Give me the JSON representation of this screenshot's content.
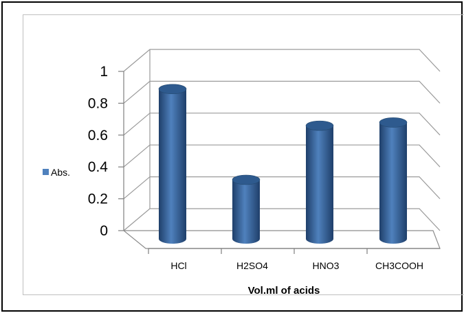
{
  "chart_data": {
    "type": "bar",
    "style": "3d-cylinder",
    "categories": [
      "HCl",
      "H2SO4",
      "HNO3",
      "CH3COOH"
    ],
    "series": [
      {
        "name": "Abs.",
        "values": [
          0.82,
          0.25,
          0.59,
          0.61
        ]
      }
    ],
    "title": "",
    "xlabel": "Vol.ml of acids",
    "ylabel": "",
    "ylim": [
      0,
      1
    ],
    "yticks": [
      "0",
      "0.2",
      "0.4",
      "0.6",
      "0.8",
      "1"
    ],
    "grid": true,
    "legend": "left",
    "colors": {
      "bar": "#4f81bd",
      "bar_dark": "#1f3f6a",
      "bar_top": "#2e5a8e",
      "grid": "#9a9a9a"
    }
  }
}
